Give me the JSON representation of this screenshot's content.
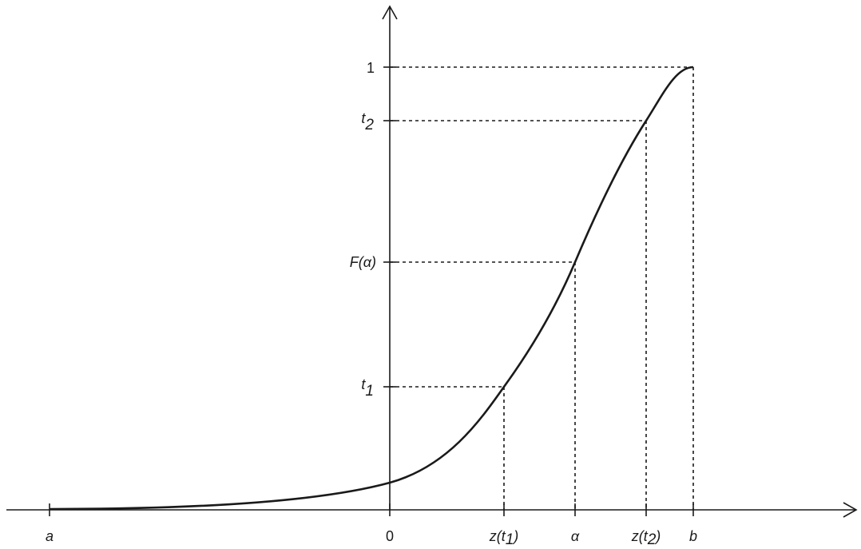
{
  "figure": {
    "x_labels": {
      "a": "a",
      "zero": "0",
      "z_t1_prefix": "z(t",
      "z_t1_sub": "1",
      "z_t1_suffix": ")",
      "alpha": "α",
      "z_t2_prefix": "z(t",
      "z_t2_sub": "2",
      "z_t2_suffix": ")",
      "b": "b"
    },
    "y_labels": {
      "one": "1",
      "t2_base": "t",
      "t2_sub": "2",
      "f_alpha": "F(α)",
      "t1_base": "t",
      "t1_sub": "1"
    }
  }
}
